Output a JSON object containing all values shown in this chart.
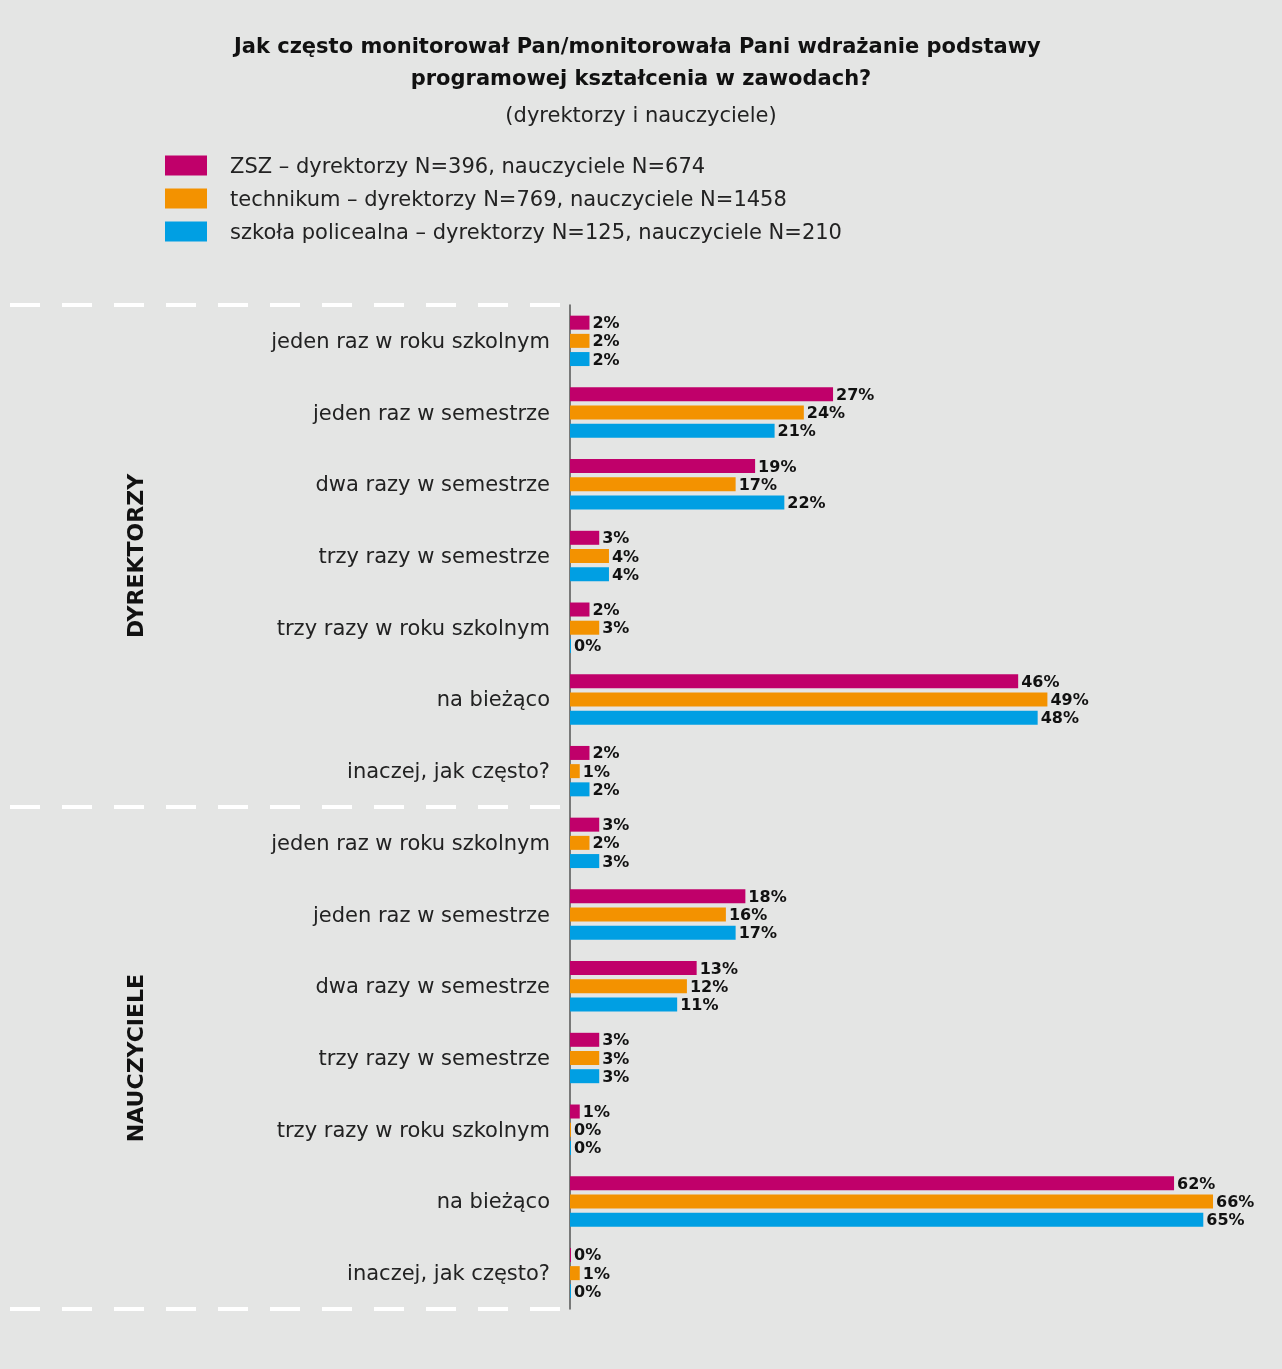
{
  "chart_data": {
    "type": "bar",
    "orientation": "horizontal",
    "title": "Jak często monitorował Pan/monitorowała Pani wdrażanie podstawy programowej kształcenia w zawodach?",
    "subtitle": "(dyrektorzy i nauczyciele)",
    "categories": [
      "jeden raz w roku szkolnym",
      "jeden raz w semestrze",
      "dwa razy w semestrze",
      "trzy razy w semestrze",
      "trzy razy w roku szkolnym",
      "na bieżąco",
      "inaczej, jak często?",
      "jeden raz w roku szkolnym",
      "jeden raz w semestrze",
      "dwa razy w semestrze",
      "trzy razy w semestrze",
      "trzy razy w roku szkolnym",
      "na bieżąco",
      "inaczej, jak często?"
    ],
    "series": [
      {
        "name": "ZSZ – dyrektorzy N=396, nauczyciele N=674",
        "color": "#c0006a",
        "values": [
          2,
          27,
          19,
          3,
          2,
          46,
          2,
          3,
          18,
          13,
          3,
          1,
          62,
          0
        ],
        "value_labels": [
          "2%",
          "27%",
          "19%",
          "3%",
          "2%",
          "46%",
          "2%",
          "3%",
          "18%",
          "13%",
          "3%",
          "1%",
          "62%",
          "0%"
        ]
      },
      {
        "name": "technikum – dyrektorzy N=769, nauczyciele N=1458",
        "color": "#f39200",
        "values": [
          2,
          24,
          17,
          4,
          3,
          49,
          1,
          2,
          16,
          12,
          3,
          0,
          66,
          1
        ],
        "value_labels": [
          "2%",
          "24%",
          "17%",
          "4%",
          "3%",
          "49%",
          "1%",
          "2%",
          "16%",
          "12%",
          "3%",
          "0%",
          "66%",
          "1%"
        ]
      },
      {
        "name": "szkoła policealna – dyrektorzy N=125, nauczyciele N=210",
        "color": "#009fe3",
        "values": [
          2,
          21,
          22,
          4,
          0,
          48,
          2,
          3,
          17,
          11,
          3,
          0,
          65,
          0
        ],
        "value_labels": [
          "2%",
          "21%",
          "22%",
          "4%",
          "0%",
          "48%",
          "2%",
          "3%",
          "17%",
          "11%",
          "3%",
          "0%",
          "65%",
          "0%"
        ]
      }
    ],
    "annotations": [
      "DYREKTORZY",
      "NAUCZYCIELE"
    ],
    "legend": "top left",
    "grid": false
  }
}
